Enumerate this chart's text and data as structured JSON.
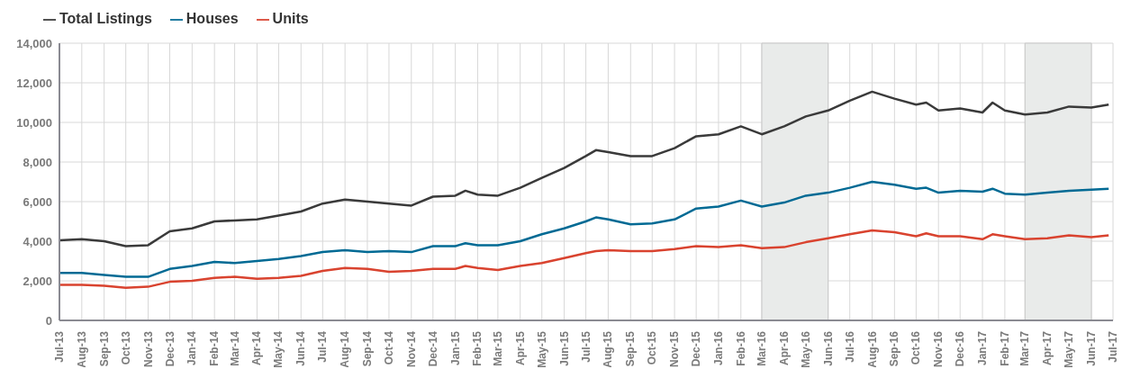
{
  "chart_data": {
    "type": "line",
    "x": [
      "2013-07-01",
      "2013-08-01",
      "2013-09-01",
      "2013-10-01",
      "2013-11-01",
      "2013-12-01",
      "2014-01-01",
      "2014-02-01",
      "2014-03-01",
      "2014-04-01",
      "2014-05-01",
      "2014-06-01",
      "2014-07-01",
      "2014-08-01",
      "2014-09-01",
      "2014-10-01",
      "2014-11-01",
      "2014-12-01",
      "2015-01-01",
      "2015-01-15",
      "2015-02-01",
      "2015-03-01",
      "2015-04-01",
      "2015-05-01",
      "2015-06-01",
      "2015-07-01",
      "2015-07-15",
      "2015-08-01",
      "2015-09-01",
      "2015-10-01",
      "2015-11-01",
      "2015-12-01",
      "2016-01-01",
      "2016-02-01",
      "2016-03-01",
      "2016-04-01",
      "2016-05-01",
      "2016-06-01",
      "2016-07-01",
      "2016-08-01",
      "2016-09-01",
      "2016-10-01",
      "2016-10-15",
      "2016-11-01",
      "2016-12-01",
      "2017-01-01",
      "2017-01-15",
      "2017-02-01",
      "2017-03-01",
      "2017-04-01",
      "2017-05-01",
      "2017-06-01",
      "2017-06-25"
    ],
    "series": [
      {
        "name": "Total Listings",
        "color": "#3a3a3a",
        "values": [
          4050,
          4100,
          4000,
          3750,
          3800,
          4500,
          4650,
          5000,
          5050,
          5100,
          5300,
          5500,
          5900,
          6100,
          6000,
          5900,
          5800,
          6250,
          6300,
          6550,
          6350,
          6300,
          6700,
          7200,
          7700,
          8300,
          8600,
          8500,
          8300,
          8300,
          8700,
          9300,
          9400,
          9800,
          9400,
          9800,
          10300,
          10600,
          11100,
          11550,
          11200,
          10900,
          11000,
          10600,
          10700,
          10500,
          11000,
          10600,
          10400,
          10500,
          10800,
          10750,
          10900
        ]
      },
      {
        "name": "Houses",
        "color": "#006a94",
        "values": [
          2400,
          2400,
          2300,
          2200,
          2200,
          2600,
          2750,
          2950,
          2900,
          3000,
          3100,
          3250,
          3450,
          3550,
          3450,
          3500,
          3450,
          3750,
          3750,
          3900,
          3800,
          3800,
          4000,
          4350,
          4650,
          5000,
          5200,
          5100,
          4850,
          4900,
          5100,
          5650,
          5750,
          6050,
          5750,
          5950,
          6300,
          6450,
          6700,
          7000,
          6850,
          6650,
          6700,
          6450,
          6550,
          6500,
          6650,
          6400,
          6350,
          6450,
          6550,
          6600,
          6650
        ]
      },
      {
        "name": "Units",
        "color": "#d9432f",
        "values": [
          1800,
          1800,
          1750,
          1650,
          1700,
          1950,
          2000,
          2150,
          2200,
          2100,
          2150,
          2250,
          2500,
          2650,
          2600,
          2450,
          2500,
          2600,
          2600,
          2750,
          2650,
          2550,
          2750,
          2900,
          3150,
          3400,
          3500,
          3550,
          3500,
          3500,
          3600,
          3750,
          3700,
          3800,
          3650,
          3700,
          3950,
          4150,
          4350,
          4550,
          4450,
          4250,
          4400,
          4250,
          4250,
          4100,
          4350,
          4250,
          4100,
          4150,
          4300,
          4200,
          4300
        ]
      }
    ],
    "xlim": [
      "2013-07-01",
      "2017-07-01"
    ],
    "xticks": [
      {
        "value": "2013-07-01",
        "label": "Jul-13"
      },
      {
        "value": "2013-08-01",
        "label": "Aug-13"
      },
      {
        "value": "2013-09-01",
        "label": "Sep-13"
      },
      {
        "value": "2013-10-01",
        "label": "Oct-13"
      },
      {
        "value": "2013-11-01",
        "label": "Nov-13"
      },
      {
        "value": "2013-12-01",
        "label": "Dec-13"
      },
      {
        "value": "2014-01-01",
        "label": "Jan-14"
      },
      {
        "value": "2014-02-01",
        "label": "Feb-14"
      },
      {
        "value": "2014-03-01",
        "label": "Mar-14"
      },
      {
        "value": "2014-04-01",
        "label": "Apr-14"
      },
      {
        "value": "2014-05-01",
        "label": "May-14"
      },
      {
        "value": "2014-06-01",
        "label": "Jun-14"
      },
      {
        "value": "2014-07-01",
        "label": "Jul-14"
      },
      {
        "value": "2014-08-01",
        "label": "Aug-14"
      },
      {
        "value": "2014-09-01",
        "label": "Sep-14"
      },
      {
        "value": "2014-10-01",
        "label": "Oct-14"
      },
      {
        "value": "2014-11-01",
        "label": "Nov-14"
      },
      {
        "value": "2014-12-01",
        "label": "Dec-14"
      },
      {
        "value": "2015-01-01",
        "label": "Jan-15"
      },
      {
        "value": "2015-02-01",
        "label": "Feb-15"
      },
      {
        "value": "2015-03-01",
        "label": "Mar-15"
      },
      {
        "value": "2015-04-01",
        "label": "Apr-15"
      },
      {
        "value": "2015-05-01",
        "label": "May-15"
      },
      {
        "value": "2015-06-01",
        "label": "Jun-15"
      },
      {
        "value": "2015-07-01",
        "label": "Jul-15"
      },
      {
        "value": "2015-08-01",
        "label": "Aug-15"
      },
      {
        "value": "2015-09-01",
        "label": "Sep-15"
      },
      {
        "value": "2015-10-01",
        "label": "Oct-15"
      },
      {
        "value": "2015-11-01",
        "label": "Nov-15"
      },
      {
        "value": "2015-12-01",
        "label": "Dec-15"
      },
      {
        "value": "2016-01-01",
        "label": "Jan-16"
      },
      {
        "value": "2016-02-01",
        "label": "Feb-16"
      },
      {
        "value": "2016-03-01",
        "label": "Mar-16"
      },
      {
        "value": "2016-04-01",
        "label": "Apr-16"
      },
      {
        "value": "2016-05-01",
        "label": "May-16"
      },
      {
        "value": "2016-06-01",
        "label": "Jun-16"
      },
      {
        "value": "2016-07-01",
        "label": "Jul-16"
      },
      {
        "value": "2016-08-01",
        "label": "Aug-16"
      },
      {
        "value": "2016-09-01",
        "label": "Sep-16"
      },
      {
        "value": "2016-10-01",
        "label": "Oct-16"
      },
      {
        "value": "2016-11-01",
        "label": "Nov-16"
      },
      {
        "value": "2016-12-01",
        "label": "Dec-16"
      },
      {
        "value": "2017-01-01",
        "label": "Jan-17"
      },
      {
        "value": "2017-02-01",
        "label": "Feb-17"
      },
      {
        "value": "2017-03-01",
        "label": "Mar-17"
      },
      {
        "value": "2017-04-01",
        "label": "Apr-17"
      },
      {
        "value": "2017-05-01",
        "label": "May-17"
      },
      {
        "value": "2017-06-01",
        "label": "Jun-17"
      },
      {
        "value": "2017-07-01",
        "label": "Jul-17"
      }
    ],
    "ylim": [
      0,
      14000
    ],
    "yticks": [
      {
        "value": 0,
        "label": "0"
      },
      {
        "value": 2000,
        "label": "2,000"
      },
      {
        "value": 4000,
        "label": "4,000"
      },
      {
        "value": 6000,
        "label": "6,000"
      },
      {
        "value": 8000,
        "label": "8,000"
      },
      {
        "value": 10000,
        "label": "10,000"
      },
      {
        "value": 12000,
        "label": "12,000"
      },
      {
        "value": 14000,
        "label": "14,000"
      }
    ],
    "bands": [
      {
        "axis": "x",
        "from": "2016-03-01",
        "to": "2016-06-01",
        "color": "#e9ebea"
      },
      {
        "axis": "x",
        "from": "2017-03-01",
        "to": "2017-06-01",
        "color": "#e9ebea"
      }
    ],
    "grid": true,
    "legend": "top left",
    "marker": "none",
    "line_style": "solid"
  }
}
